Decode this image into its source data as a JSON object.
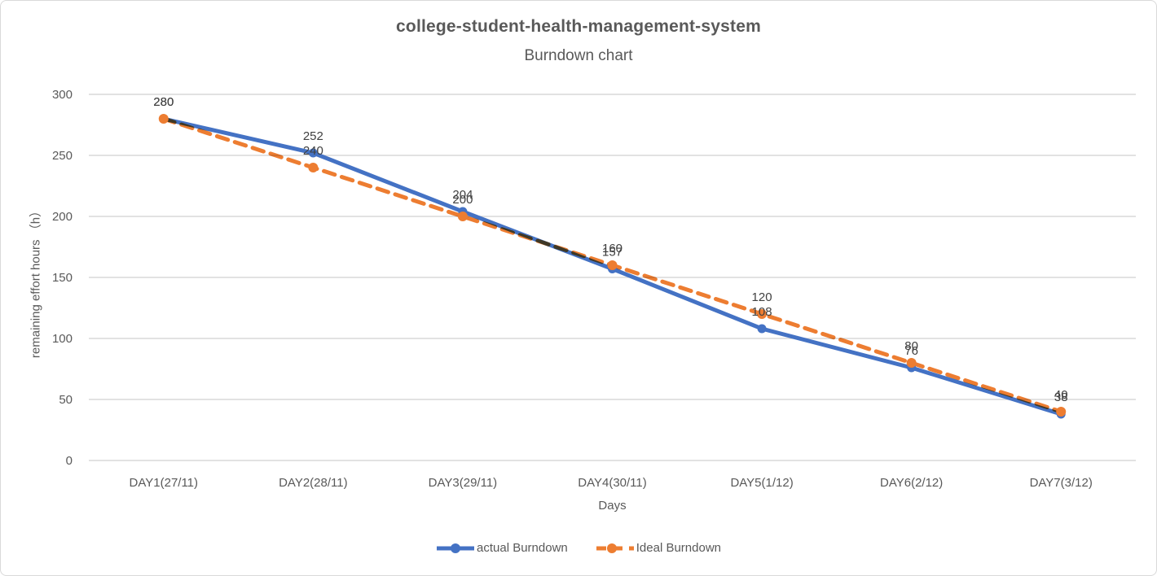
{
  "chart_data": {
    "type": "line",
    "title": "college-student-health-management-system",
    "subtitle": "Burndown chart",
    "xlabel": "Days",
    "ylabel": "remaining effort hours （h）",
    "ylim": [
      0,
      300
    ],
    "ytick_step": 50,
    "ytick_labels": [
      "0",
      "50",
      "100",
      "150",
      "200",
      "250",
      "300"
    ],
    "grid": true,
    "legend_position": "bottom",
    "categories": [
      "DAY1(27/11)",
      "DAY2(28/11)",
      "DAY3(29/11)",
      "DAY4(30/11)",
      "DAY5(1/12)",
      "DAY6(2/12)",
      "DAY7(3/12)"
    ],
    "series": [
      {
        "name": "actual Burndown",
        "color": "#4472C4",
        "style": "solid",
        "values": [
          280,
          252,
          204,
          157,
          108,
          76,
          38
        ]
      },
      {
        "name": "Ideal Burndown",
        "color": "#ED7D31",
        "style": "dashed",
        "values": [
          280,
          240,
          200,
          160,
          120,
          80,
          40
        ]
      }
    ],
    "colors": {
      "gridline": "#d9d9d9",
      "axis_text": "#595959",
      "data_label": "#404040"
    }
  }
}
